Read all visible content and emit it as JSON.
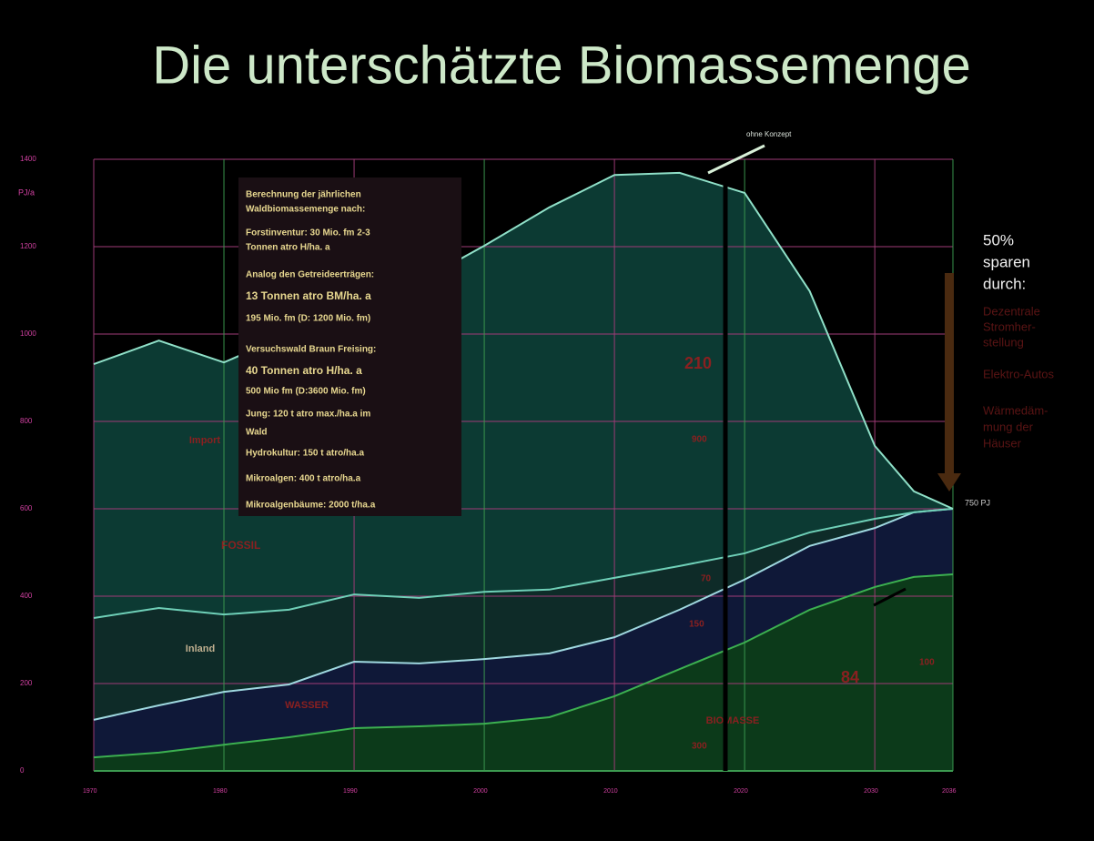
{
  "chart_data": {
    "type": "stacked_area",
    "title": "Die unterschätzte Biomassemenge",
    "y_label": "PJ/a",
    "x": [
      1970,
      1975,
      1980,
      1985,
      1990,
      1995,
      2000,
      2005,
      2010,
      2015,
      2020,
      2025,
      2030,
      2033,
      2036
    ],
    "series": [
      {
        "name": "BIOMASSE",
        "color": "#0c3a1a",
        "line_color": "#3cb050",
        "values": [
          31,
          42,
          60,
          77,
          98,
          102,
          108,
          123,
          171,
          233,
          294,
          369,
          421,
          444,
          450
        ]
      },
      {
        "name": "WASSER",
        "color": "#0f1838",
        "line_color": "#9fd8e0",
        "values": [
          86,
          108,
          121,
          121,
          152,
          144,
          148,
          146,
          135,
          136,
          144,
          146,
          135,
          148,
          150
        ]
      },
      {
        "name": "Inland",
        "color": "#0e2b28",
        "line_color": "#6fd0b8",
        "values": [
          233,
          223,
          177,
          171,
          154,
          150,
          154,
          146,
          136,
          100,
          60,
          31,
          21,
          0,
          0
        ]
      },
      {
        "name": "Import",
        "color": "#0c3a33",
        "line_color": "#8fe0c8",
        "values": [
          581,
          612,
          577,
          631,
          656,
          724,
          792,
          875,
          922,
          900,
          825,
          552,
          167,
          48,
          0
        ]
      }
    ],
    "xlim": [
      1970,
      2036
    ],
    "xticks": [
      1970,
      1980,
      1990,
      2000,
      2010,
      2020,
      2030,
      2036
    ],
    "ylim": [
      0,
      1400
    ],
    "yticks": [
      0,
      200,
      400,
      600,
      800,
      1000,
      1200,
      1400
    ],
    "grid": true,
    "annotations": [
      "FOSSIL",
      "ohne Konzept",
      "750 PJ",
      "210",
      "900",
      "70",
      "150",
      "84",
      "300",
      "100"
    ],
    "info_box": [
      "Berechnung der jährlichen",
      "Waldbiomassemenge nach:",
      "Forstinventur: 30 Mio. fm 2-3",
      "Tonnen atro H/ha. a",
      "Analog den Getreideerträgen:",
      "13 Tonnen atro BM/ha. a",
      "195 Mio. fm (D: 1200 Mio. fm)",
      "Versuchswald Braun Freising:",
      "40 Tonnen atro H/ha. a",
      "500 Mio fm (D:3600 Mio. fm)",
      "Jung: 120 t atro max./ha.a im",
      "Wald",
      "Hydrokultur: 150 t atro/ha.a",
      "Mikroalgen: 400 t atro/ha.a",
      "Mikroalgenbäume: 2000 t/ha.a"
    ],
    "side_note": {
      "heading": [
        "50%",
        "sparen",
        "durch:"
      ],
      "items": [
        "Dezentrale",
        "Stromher-",
        "stellung",
        "Elektro-Autos",
        "Wärmedäm-",
        "mung der",
        "Häuser"
      ]
    }
  }
}
